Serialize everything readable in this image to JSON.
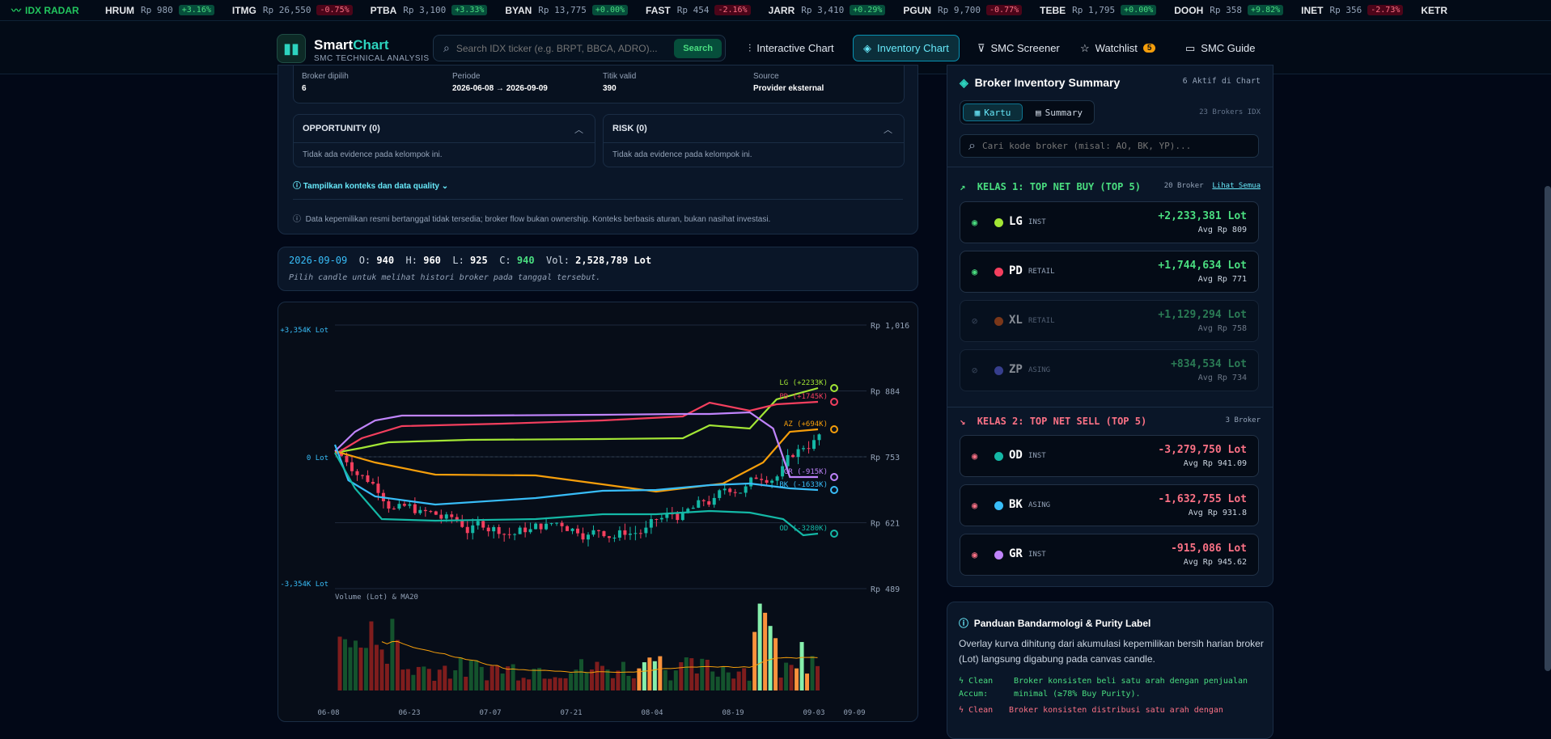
{
  "ticker": {
    "brand": "IDX RADAR",
    "items": [
      {
        "sym": "HRUM",
        "price": "Rp 980",
        "chg": "+3.16%",
        "dir": "up"
      },
      {
        "sym": "ITMG",
        "price": "Rp 26,550",
        "chg": "-0.75%",
        "dir": "dn"
      },
      {
        "sym": "PTBA",
        "price": "Rp 3,100",
        "chg": "+3.33%",
        "dir": "up"
      },
      {
        "sym": "BYAN",
        "price": "Rp 13,775",
        "chg": "+0.00%",
        "dir": "up"
      },
      {
        "sym": "FAST",
        "price": "Rp 454",
        "chg": "-2.16%",
        "dir": "dn"
      },
      {
        "sym": "JARR",
        "price": "Rp 3,410",
        "chg": "+0.29%",
        "dir": "up"
      },
      {
        "sym": "PGUN",
        "price": "Rp 9,700",
        "chg": "-0.77%",
        "dir": "dn"
      },
      {
        "sym": "TEBE",
        "price": "Rp 1,795",
        "chg": "+0.00%",
        "dir": "up"
      },
      {
        "sym": "DOOH",
        "price": "Rp 358",
        "chg": "+9.82%",
        "dir": "up"
      },
      {
        "sym": "INET",
        "price": "Rp 356",
        "chg": "-2.73%",
        "dir": "dn"
      },
      {
        "sym": "KETR",
        "price": "",
        "chg": "",
        "dir": "up"
      }
    ]
  },
  "nav": {
    "brand_a": "Smart",
    "brand_b": "Chart",
    "subtitle": "SMC TECHNICAL ANALYSIS",
    "search_placeholder": "Search IDX ticker (e.g. BRPT, BBCA, ADRO)...",
    "search_button": "Search",
    "links": {
      "interactive": "Interactive Chart",
      "inventory": "Inventory Chart",
      "screener": "SMC Screener",
      "watchlist": "Watchlist",
      "watchlist_count": "5",
      "guide": "SMC Guide"
    }
  },
  "summary_bar": {
    "broker_label": "Broker dipilih",
    "broker_value": "6",
    "periode_label": "Periode",
    "periode_value": "2026-06-08 → 2026-09-09",
    "titik_label": "Titik valid",
    "titik_value": "390",
    "source_label": "Source",
    "source_value": "Provider eksternal"
  },
  "opportunity": {
    "title": "OPPORTUNITY (0)",
    "empty": "Tidak ada evidence pada kelompok ini."
  },
  "risk": {
    "title": "RISK (0)",
    "empty": "Tidak ada evidence pada kelompok ini."
  },
  "context_toggle": "Tampilkan konteks dan data quality",
  "disclaimer": "Data kepemilikan resmi bertanggal tidak tersedia; broker flow bukan ownership. Konteks berbasis aturan, bukan nasihat investasi.",
  "ohlc": {
    "date": "2026-09-09",
    "o_label": "O:",
    "o": "940",
    "h_label": "H:",
    "h": "960",
    "l_label": "L:",
    "l": "925",
    "c_label": "C:",
    "c": "940",
    "vol_label": "Vol:",
    "vol": "2,528,789 Lot",
    "hint": "Pilih candle untuk melihat histori broker pada tanggal tersebut."
  },
  "chart_data": {
    "type": "line",
    "price_axis": {
      "ticks": [
        "Rp 1,016",
        "Rp 884",
        "Rp 753",
        "Rp 621",
        "Rp 489"
      ],
      "range": [
        489,
        1016
      ]
    },
    "lot_axis": {
      "top": "+3,354K Lot",
      "zero": "0 Lot",
      "bottom": "-3,354K Lot"
    },
    "x_ticks": [
      "06-08",
      "06-23",
      "07-07",
      "07-21",
      "08-04",
      "08-19",
      "09-03",
      "09-09"
    ],
    "volume_label": "Volume (Lot) & MA20",
    "series": [
      {
        "name": "LG",
        "label": "LG (+2233K)",
        "color": "#a3e635",
        "end_k": 2233
      },
      {
        "name": "PD",
        "label": "PD (+1745K)",
        "color": "#f43f5e",
        "end_k": 1745
      },
      {
        "name": "AZ",
        "label": "AZ (+694K)",
        "color": "#f59e0b",
        "end_k": 694
      },
      {
        "name": "GR",
        "label": "GR (-915K)",
        "color": "#c084fc",
        "end_k": -915
      },
      {
        "name": "BK",
        "label": "BK (-1633K)",
        "color": "#38bdf8",
        "end_k": -1633
      },
      {
        "name": "OD",
        "label": "OD (-3280K)",
        "color": "#14b8a6",
        "end_k": -3280
      }
    ]
  },
  "inventory": {
    "title": "Broker Inventory Summary",
    "active": "6 Aktif di Chart",
    "tab_cards": "Kartu",
    "tab_summary": "Summary",
    "total": "23 Brokers IDX",
    "search_placeholder": "Cari kode broker (misal: AO, BK, YP)...",
    "buy_title": "KELAS 1: TOP NET BUY (TOP 5)",
    "buy_count": "20 Broker",
    "see_all": "Lihat Semua",
    "buy": [
      {
        "code": "LG",
        "type": "INST",
        "lot": "+2,233,381 Lot",
        "avg": "Avg Rp 809",
        "color": "#a3e635",
        "on": true
      },
      {
        "code": "PD",
        "type": "RETAIL",
        "lot": "+1,744,634 Lot",
        "avg": "Avg Rp 771",
        "color": "#f43f5e",
        "on": true
      },
      {
        "code": "XL",
        "type": "RETAIL",
        "lot": "+1,129,294 Lot",
        "avg": "Avg Rp 758",
        "color": "#ea580c",
        "on": false
      },
      {
        "code": "ZP",
        "type": "ASING",
        "lot": "+834,534 Lot",
        "avg": "Avg Rp 734",
        "color": "#6366f1",
        "on": false
      }
    ],
    "sell_title": "KELAS 2: TOP NET SELL (TOP 5)",
    "sell_count": "3 Broker",
    "sell": [
      {
        "code": "OD",
        "type": "INST",
        "lot": "-3,279,750 Lot",
        "avg": "Avg Rp 941.09",
        "color": "#14b8a6",
        "on": true
      },
      {
        "code": "BK",
        "type": "ASING",
        "lot": "-1,632,755 Lot",
        "avg": "Avg Rp 931.8",
        "color": "#38bdf8",
        "on": true
      },
      {
        "code": "GR",
        "type": "INST",
        "lot": "-915,086 Lot",
        "avg": "Avg Rp 945.62",
        "color": "#c084fc",
        "on": true
      }
    ]
  },
  "guide": {
    "title": "Panduan Bandarmologi & Purity Label",
    "text": "Overlay kurva dihitung dari akumulasi kepemilikan bersih harian broker (Lot) langsung digabung pada canvas candle.",
    "clean_accum_label": "Clean Accum:",
    "clean_accum_text": "Broker konsisten beli satu arah dengan penjualan minimal (≥78% Buy Purity).",
    "clean_dist_label": "Clean",
    "clean_dist_text": "Broker konsisten distribusi satu arah dengan"
  },
  "colors": {
    "accent": "#2dd4bf",
    "up": "#4ade80",
    "down": "#f43f5e"
  }
}
